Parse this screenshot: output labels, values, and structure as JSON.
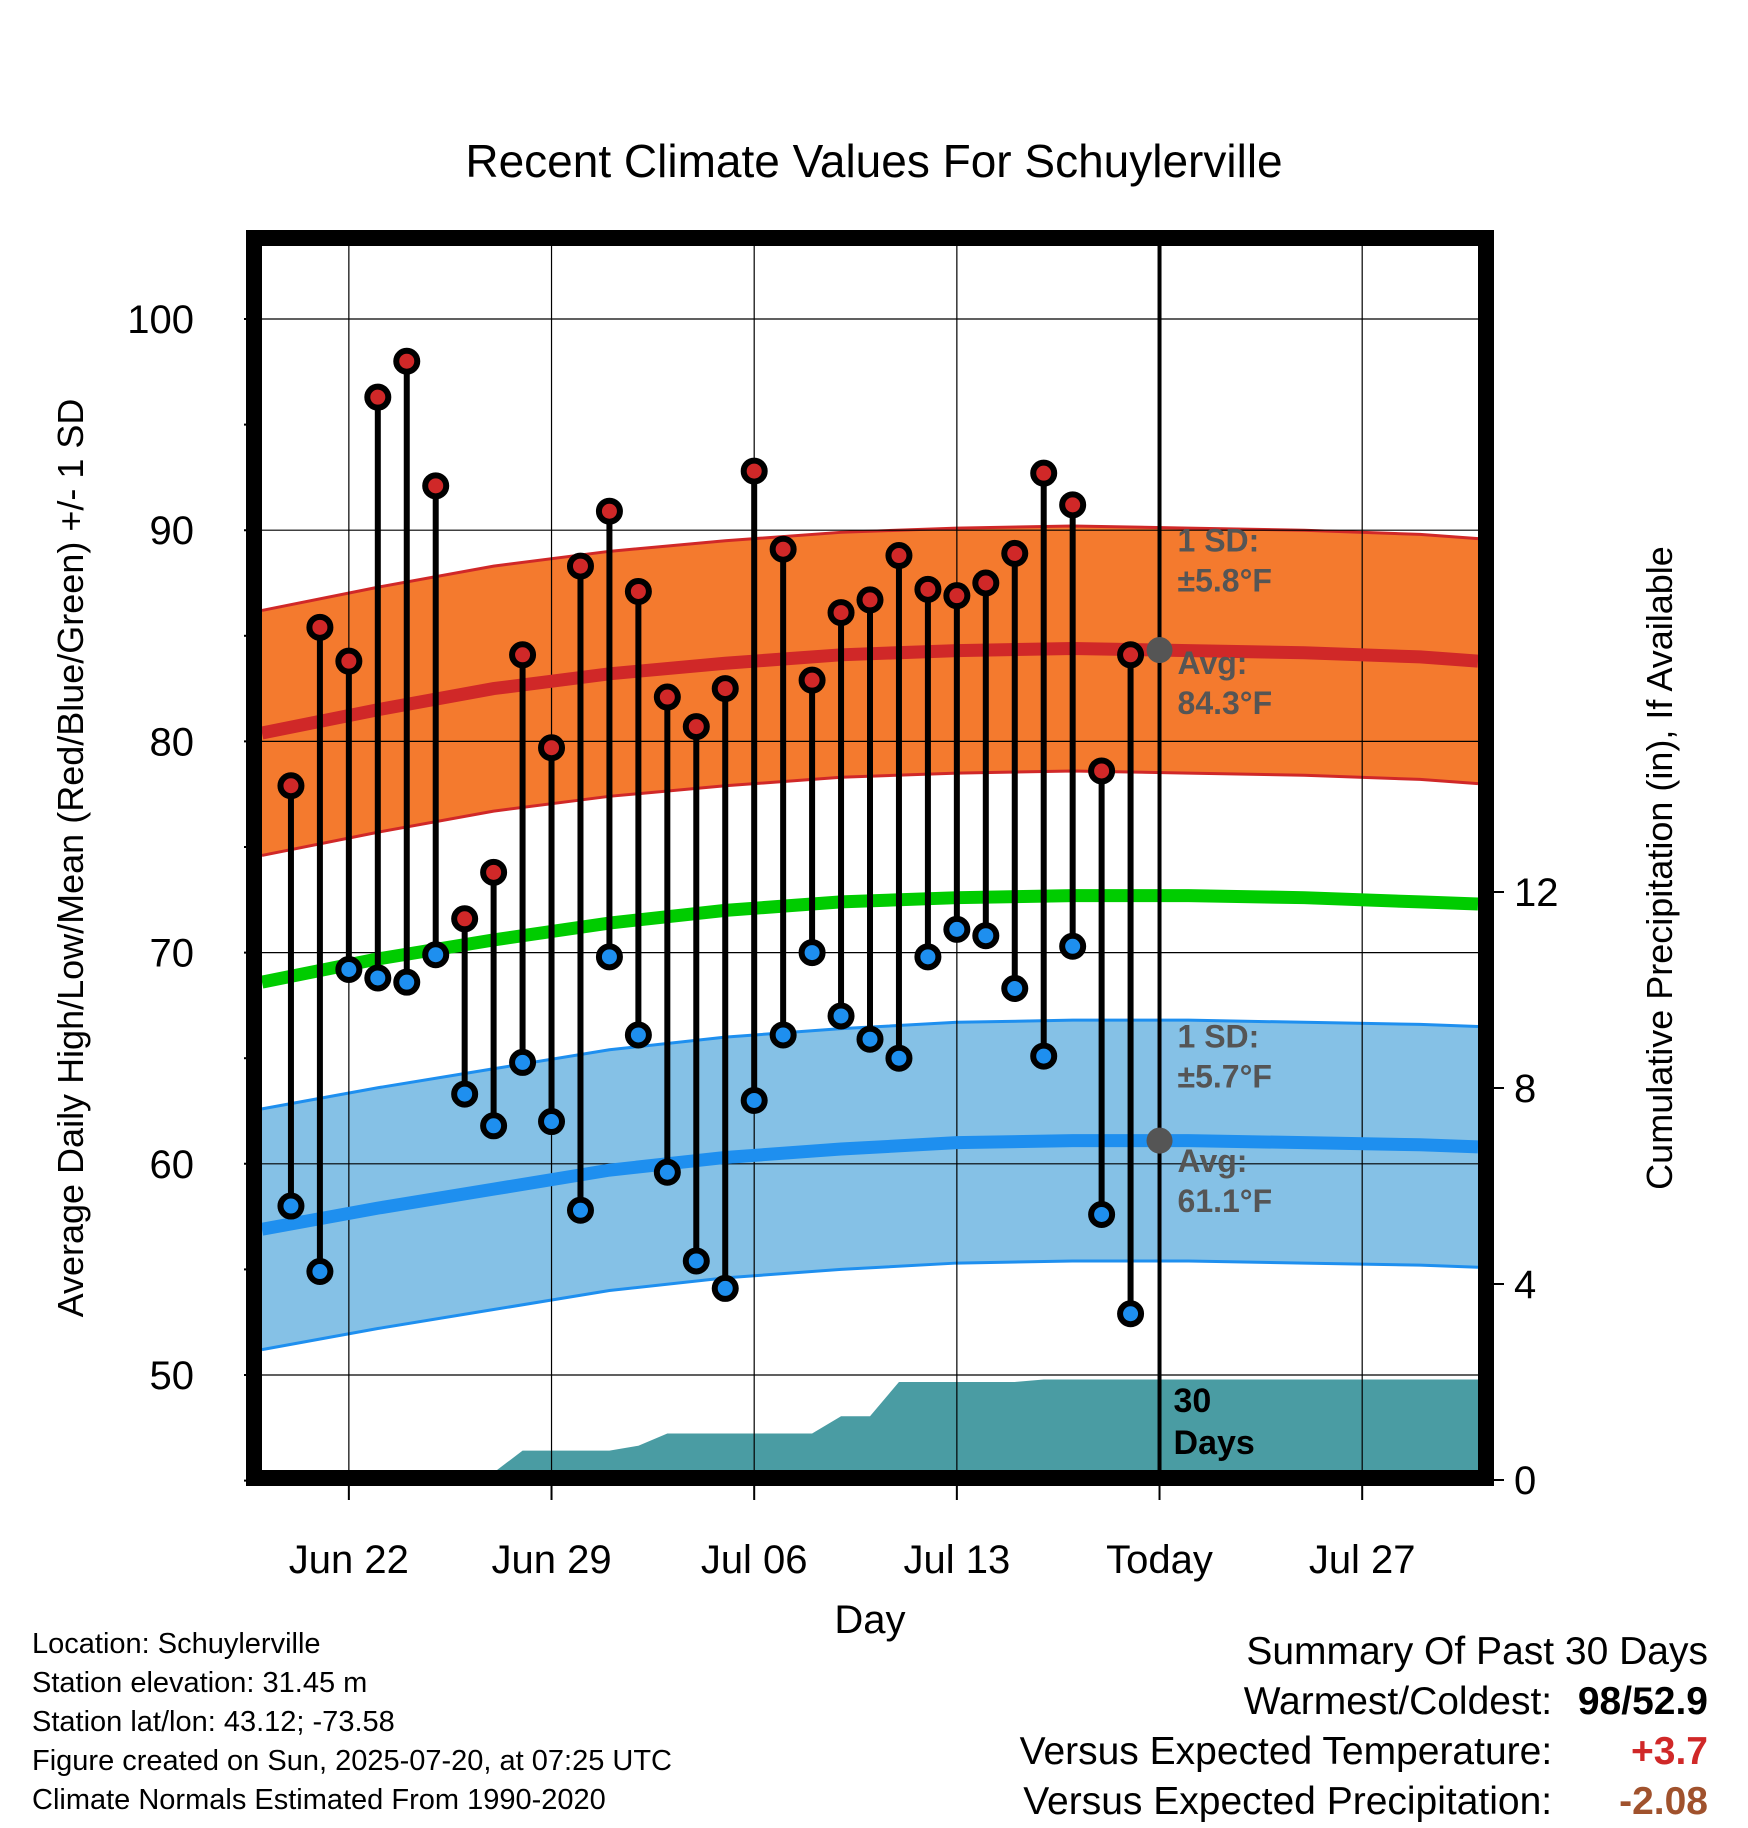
{
  "title": "Recent Climate Values For Schuylerville",
  "footer": {
    "location": "Location: Schuylerville",
    "elevation": "Station elevation: 31.45 m",
    "latlon": "Station lat/lon: 43.12; -73.58",
    "created": "Figure created on Sun, 2025-07-20, at 07:25 UTC",
    "normals": "Climate Normals Estimated From 1990-2020"
  },
  "summary": {
    "heading": "Summary Of Past 30 Days",
    "warmest_label": "Warmest/Coldest:",
    "warmest_value": "98",
    "coldest_value": "52.9",
    "temp_label": "Versus Expected Temperature:",
    "temp_value": "+3.7",
    "precip_label": "Versus Expected Precipitation:",
    "precip_value": "-2.08",
    "colors": {
      "temp_value": "#d02828",
      "precip_value": "#a0522d"
    }
  },
  "chart_data": {
    "type": "line",
    "title": "Recent Climate Values For Schuylerville",
    "xlabel": "Day",
    "ylabel": "Average Daily High/Low/Mean (Red/Blue/Green) +/- 1 SD",
    "y2label": "Cumulative Precipitation (in), If Available",
    "xlim": [
      "2025-06-19",
      "2025-07-31"
    ],
    "ylim": [
      45,
      100
    ],
    "y2lim": [
      0,
      20
    ],
    "x_ticks": [
      {
        "date": "2025-06-22",
        "label": "Jun 22"
      },
      {
        "date": "2025-06-29",
        "label": "Jun 29"
      },
      {
        "date": "2025-07-06",
        "label": "Jul 06"
      },
      {
        "date": "2025-07-13",
        "label": "Jul 13"
      },
      {
        "date": "2025-07-20",
        "label": "Today"
      },
      {
        "date": "2025-07-27",
        "label": "Jul 27"
      }
    ],
    "y_ticks": [
      50,
      60,
      70,
      80,
      90,
      100
    ],
    "y2_ticks": [
      0,
      4,
      8,
      12
    ],
    "today": "2025-07-20",
    "grid": true,
    "daily": {
      "dates": [
        "2025-06-20",
        "2025-06-21",
        "2025-06-22",
        "2025-06-23",
        "2025-06-24",
        "2025-06-25",
        "2025-06-26",
        "2025-06-27",
        "2025-06-28",
        "2025-06-29",
        "2025-06-30",
        "2025-07-01",
        "2025-07-02",
        "2025-07-03",
        "2025-07-04",
        "2025-07-05",
        "2025-07-06",
        "2025-07-07",
        "2025-07-08",
        "2025-07-09",
        "2025-07-10",
        "2025-07-11",
        "2025-07-12",
        "2025-07-13",
        "2025-07-14",
        "2025-07-15",
        "2025-07-16",
        "2025-07-17",
        "2025-07-18",
        "2025-07-19"
      ],
      "highs": [
        77.9,
        85.4,
        83.8,
        96.3,
        98.0,
        92.1,
        71.6,
        73.8,
        84.1,
        79.7,
        88.3,
        90.9,
        87.1,
        82.1,
        80.7,
        82.5,
        92.8,
        89.1,
        82.9,
        86.1,
        86.7,
        88.8,
        87.2,
        86.9,
        87.5,
        88.9,
        92.7,
        91.2,
        78.6,
        84.1
      ],
      "lows": [
        58.0,
        54.9,
        69.2,
        68.8,
        68.6,
        69.9,
        63.3,
        61.8,
        64.8,
        62.0,
        57.8,
        69.8,
        66.1,
        59.6,
        55.4,
        54.1,
        63.0,
        66.1,
        70.0,
        67.0,
        65.9,
        65.0,
        69.8,
        71.1,
        70.8,
        68.3,
        65.1,
        70.3,
        57.6,
        52.9
      ]
    },
    "normals": {
      "dates": [
        "2025-06-19",
        "2025-06-23",
        "2025-06-27",
        "2025-07-01",
        "2025-07-05",
        "2025-07-09",
        "2025-07-13",
        "2025-07-17",
        "2025-07-21",
        "2025-07-25",
        "2025-07-29",
        "2025-07-31"
      ],
      "high_avg": [
        80.4,
        81.5,
        82.5,
        83.2,
        83.7,
        84.1,
        84.3,
        84.4,
        84.3,
        84.2,
        84.0,
        83.8
      ],
      "low_avg": [
        56.9,
        57.9,
        58.8,
        59.7,
        60.3,
        60.7,
        61.0,
        61.1,
        61.1,
        61.0,
        60.9,
        60.8
      ],
      "mean_avg": [
        68.6,
        69.7,
        70.6,
        71.4,
        72.0,
        72.4,
        72.6,
        72.7,
        72.7,
        72.6,
        72.4,
        72.3
      ],
      "high_sd": 5.8,
      "low_sd": 5.7
    },
    "precip_cumulative": {
      "dates": [
        "2025-06-22",
        "2025-06-27",
        "2025-06-28",
        "2025-07-01",
        "2025-07-02",
        "2025-07-03",
        "2025-07-08",
        "2025-07-09",
        "2025-07-10",
        "2025-07-11",
        "2025-07-15",
        "2025-07-16",
        "2025-07-19"
      ],
      "values": [
        0.15,
        0.15,
        0.6,
        0.6,
        0.7,
        0.95,
        0.95,
        1.3,
        1.3,
        2.0,
        2.0,
        2.05,
        2.05
      ]
    },
    "annotations": {
      "high_sd": "1 SD:\n±5.8°F",
      "high_avg": "Avg:\n84.3°F",
      "low_sd": "1 SD:\n±5.7°F",
      "low_avg": "Avg:\n61.1°F",
      "precip_days": "30\nDays"
    },
    "colors": {
      "high_band": "#f47a2e",
      "high_line": "#d02828",
      "low_band": "#85c1e6",
      "low_line": "#1e8fef",
      "mean_line": "#00cc00",
      "precip": "#4a9ca3",
      "high_marker": "#d02828",
      "low_marker": "#1e8fef"
    }
  }
}
